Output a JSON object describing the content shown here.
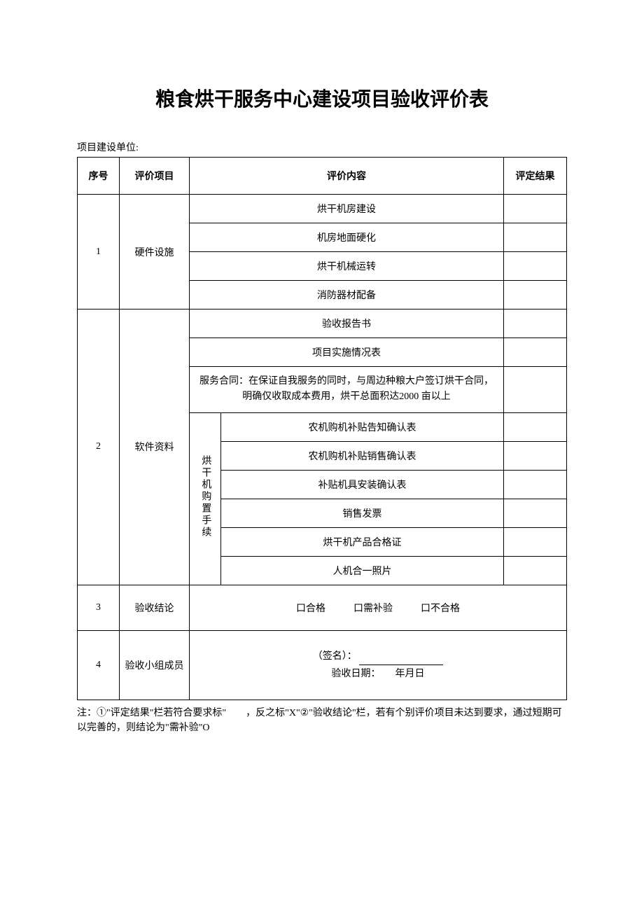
{
  "title": "粮食烘干服务中心建设项目验收评价表",
  "subtitle": "项目建设单位:",
  "headers": {
    "seq": "序号",
    "item": "评价项目",
    "content": "评价内容",
    "result": "评定结果"
  },
  "section1": {
    "seq": "1",
    "item": "硬件设施",
    "rows": [
      "烘干机房建设",
      "机房地面硬化",
      "烘干机械运转",
      "消防器材配备"
    ]
  },
  "section2": {
    "seq": "2",
    "item": "软件资料",
    "rows": [
      "验收报告书",
      "项目实施情况表"
    ],
    "contract": "服务合同：在保证自我服务的同时，与周边种粮大户签订烘干合同，明确仅收取成本费用，烘干总面积达2000 亩以上",
    "subgroup_label": "烘干机购置手续",
    "subrows": [
      "农机购机补贴告知确认表",
      "农机购机补贴销售确认表",
      "补贴机具安装确认表",
      "销售发票",
      "烘干机产品合格证",
      "人机合一照片"
    ]
  },
  "section3": {
    "seq": "3",
    "item": "验收结论",
    "options": {
      "pass": "口合格",
      "recheck": "口需补验",
      "fail": "口不合格"
    }
  },
  "section4": {
    "seq": "4",
    "item": "验收小组成员",
    "signature_label": "（签名）：",
    "date_label": "验收日期：",
    "date_suffix": "年月日"
  },
  "footnote": "注：①\"评定结果\"栏若符合要求标\"　　，反之标\"X\"②\"验收结论\"栏，若有个别评价项目未达到要求，通过短期可以完善的，则结论为\"需补验\"O",
  "colors": {
    "border": "#000000",
    "background": "#ffffff",
    "text": "#000000"
  },
  "table_style": {
    "border_width": 1,
    "font_size_body": 14,
    "font_size_title": 28
  }
}
